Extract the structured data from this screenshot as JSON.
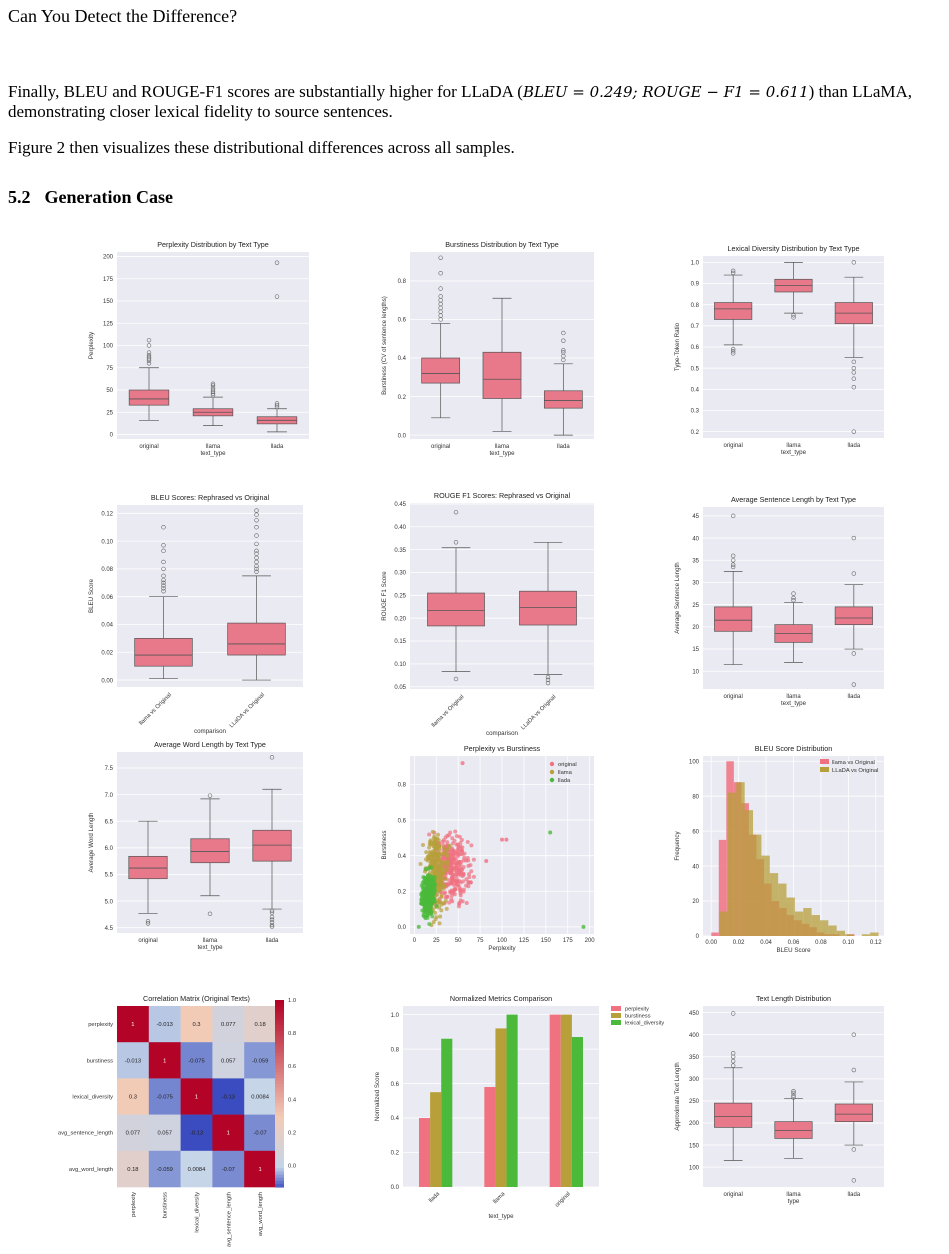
{
  "running_head": "Can You Detect the Difference?",
  "paragraph1": {
    "pre": "Finally, BLEU and ROUGE-F1 scores are substantially higher for LLaDA (",
    "math": "BLEU = 0.249; ROUGE − F1 = 0.611",
    "post": ") than LLaMA, demonstrating closer lexical fidelity to source sentences."
  },
  "paragraph2": "Figure 2 then visualizes these distributional differences across all samples.",
  "section": {
    "number": "5.2",
    "title": "Generation Case"
  },
  "colors": {
    "original": "#f07180",
    "llama": "#b79f3a",
    "llada": "#4bb93a",
    "panel_bg": "#eaeaf2",
    "box": "#e8798a"
  },
  "chart_data": [
    {
      "type": "box",
      "title": "Perplexity Distribution by Text Type",
      "xlabel": "text_type",
      "ylabel": "Perplexity",
      "categories": [
        "original",
        "llama",
        "llada"
      ],
      "ylim": [
        -5,
        205
      ],
      "yticks": [
        0,
        25,
        50,
        75,
        100,
        125,
        150,
        175,
        200
      ],
      "boxes": [
        {
          "whislo": 16,
          "q1": 33,
          "med": 40,
          "q3": 50,
          "whishi": 75,
          "fliers": [
            80,
            83,
            85,
            87,
            89,
            92,
            100,
            106
          ]
        },
        {
          "whislo": 10,
          "q1": 21,
          "med": 25,
          "q3": 29,
          "whishi": 42,
          "fliers": [
            44,
            46,
            48,
            50,
            52,
            55,
            57
          ]
        },
        {
          "whislo": 3,
          "q1": 12,
          "med": 16,
          "q3": 20,
          "whishi": 29,
          "fliers": [
            31,
            33,
            35,
            155,
            193
          ]
        }
      ]
    },
    {
      "type": "box",
      "title": "Burstiness Distribution by Text Type",
      "xlabel": "text_type",
      "ylabel": "Burstiness (CV of sentence lengths)",
      "categories": [
        "original",
        "llama",
        "llada"
      ],
      "ylim": [
        -0.02,
        0.95
      ],
      "yticks": [
        0.0,
        0.2,
        0.4,
        0.6,
        0.8
      ],
      "boxes": [
        {
          "whislo": 0.09,
          "q1": 0.27,
          "med": 0.32,
          "q3": 0.4,
          "whishi": 0.58,
          "fliers": [
            0.6,
            0.62,
            0.64,
            0.66,
            0.68,
            0.7,
            0.72,
            0.76,
            0.84,
            0.92
          ]
        },
        {
          "whislo": 0.02,
          "q1": 0.19,
          "med": 0.29,
          "q3": 0.43,
          "whishi": 0.71,
          "fliers": []
        },
        {
          "whislo": 0.0,
          "q1": 0.14,
          "med": 0.18,
          "q3": 0.23,
          "whishi": 0.37,
          "fliers": [
            0.39,
            0.41,
            0.43,
            0.44,
            0.49,
            0.53
          ]
        }
      ]
    },
    {
      "type": "box",
      "title": "Lexical Diversity Distribution by Text Type",
      "xlabel": "text_type",
      "ylabel": "Type-Token Ratio",
      "categories": [
        "original",
        "llama",
        "llada"
      ],
      "ylim": [
        0.17,
        1.03
      ],
      "yticks": [
        0.2,
        0.3,
        0.4,
        0.5,
        0.6,
        0.7,
        0.8,
        0.9,
        1.0
      ],
      "boxes": [
        {
          "whislo": 0.61,
          "q1": 0.73,
          "med": 0.78,
          "q3": 0.81,
          "whishi": 0.94,
          "fliers": [
            0.95,
            0.96,
            0.57,
            0.58,
            0.59
          ]
        },
        {
          "whislo": 0.76,
          "q1": 0.86,
          "med": 0.89,
          "q3": 0.92,
          "whishi": 1.0,
          "fliers": [
            0.74,
            0.75
          ]
        },
        {
          "whislo": 0.55,
          "q1": 0.71,
          "med": 0.76,
          "q3": 0.81,
          "whishi": 0.93,
          "fliers": [
            0.53,
            0.5,
            0.48,
            0.45,
            0.41,
            0.2,
            1.0
          ]
        }
      ]
    },
    {
      "type": "box",
      "title": "BLEU Scores: Rephrased vs Original",
      "xlabel": "comparison",
      "ylabel": "BLEU Score",
      "categories": [
        "llama vs Original",
        "LLaDA vs Original"
      ],
      "ylim": [
        -0.005,
        0.126
      ],
      "yticks": [
        0.0,
        0.02,
        0.04,
        0.06,
        0.08,
        0.1,
        0.12
      ],
      "boxes": [
        {
          "whislo": 0.001,
          "q1": 0.01,
          "med": 0.018,
          "q3": 0.03,
          "whishi": 0.06,
          "fliers": [
            0.064,
            0.066,
            0.068,
            0.07,
            0.072,
            0.075,
            0.08,
            0.085,
            0.093,
            0.097,
            0.11
          ]
        },
        {
          "whislo": 0.0,
          "q1": 0.018,
          "med": 0.026,
          "q3": 0.041,
          "whishi": 0.075,
          "fliers": [
            0.078,
            0.08,
            0.082,
            0.085,
            0.088,
            0.091,
            0.093,
            0.098,
            0.104,
            0.11,
            0.115,
            0.119,
            0.122
          ]
        }
      ]
    },
    {
      "type": "box",
      "title": "ROUGE F1 Scores: Rephrased vs Original",
      "xlabel": "comparison",
      "ylabel": "ROUGE F1 Score",
      "categories": [
        "llama vs Original",
        "LLaDA vs Original"
      ],
      "ylim": [
        0.045,
        0.452
      ],
      "yticks": [
        0.05,
        0.1,
        0.15,
        0.2,
        0.25,
        0.3,
        0.35,
        0.4,
        0.45
      ],
      "boxes": [
        {
          "whislo": 0.083,
          "q1": 0.183,
          "med": 0.217,
          "q3": 0.255,
          "whishi": 0.354,
          "fliers": [
            0.067,
            0.366,
            0.432
          ]
        },
        {
          "whislo": 0.077,
          "q1": 0.185,
          "med": 0.223,
          "q3": 0.259,
          "whishi": 0.366,
          "fliers": [
            0.058,
            0.065,
            0.071
          ]
        }
      ]
    },
    {
      "type": "box",
      "title": "Average Sentence Length by Text Type",
      "xlabel": "text_type",
      "ylabel": "Average Sentence Length",
      "categories": [
        "original",
        "llama",
        "llada"
      ],
      "ylim": [
        6,
        47
      ],
      "yticks": [
        10,
        15,
        20,
        25,
        30,
        35,
        40,
        45
      ],
      "boxes": [
        {
          "whislo": 11.5,
          "q1": 19,
          "med": 21.5,
          "q3": 24.5,
          "whishi": 32.5,
          "fliers": [
            33.5,
            34,
            35,
            36,
            45
          ]
        },
        {
          "whislo": 12,
          "q1": 16.5,
          "med": 18.5,
          "q3": 20.5,
          "whishi": 25.5,
          "fliers": [
            26,
            26.5,
            27.5
          ]
        },
        {
          "whislo": 15,
          "q1": 20.5,
          "med": 22,
          "q3": 24.5,
          "whishi": 29.5,
          "fliers": [
            14,
            7,
            32,
            40
          ]
        }
      ]
    },
    {
      "type": "box",
      "title": "Average Word Length by Text Type",
      "xlabel": "text_type",
      "ylabel": "Average Word Length",
      "categories": [
        "original",
        "llama",
        "llada"
      ],
      "ylim": [
        4.4,
        7.8
      ],
      "yticks": [
        4.5,
        5.0,
        5.5,
        6.0,
        6.5,
        7.0,
        7.5
      ],
      "boxes": [
        {
          "whislo": 4.77,
          "q1": 5.42,
          "med": 5.62,
          "q3": 5.84,
          "whishi": 6.5,
          "fliers": [
            4.58,
            4.62
          ]
        },
        {
          "whislo": 5.1,
          "q1": 5.72,
          "med": 5.93,
          "q3": 6.17,
          "whishi": 6.92,
          "fliers": [
            4.76,
            6.98
          ]
        },
        {
          "whislo": 4.85,
          "q1": 5.75,
          "med": 6.05,
          "q3": 6.33,
          "whishi": 7.1,
          "fliers": [
            4.52,
            4.55,
            4.6,
            4.65,
            4.7,
            4.78,
            4.82,
            7.7
          ]
        }
      ]
    },
    {
      "type": "scatter",
      "title": "Perplexity vs Burstiness",
      "xlabel": "Perplexity",
      "ylabel": "Burstiness",
      "xlim": [
        -5,
        205
      ],
      "ylim": [
        -0.04,
        0.96
      ],
      "xticks": [
        0,
        25,
        50,
        75,
        100,
        125,
        150,
        175,
        200
      ],
      "yticks": [
        0.0,
        0.2,
        0.4,
        0.6,
        0.8
      ],
      "legend_position": "top-right",
      "series": [
        {
          "name": "original",
          "center": [
            42,
            0.33
          ],
          "spread": [
            15,
            0.13
          ],
          "count": 300,
          "outliers": [
            [
              55,
              0.92
            ],
            [
              100,
              0.49
            ],
            [
              105,
              0.49
            ],
            [
              82,
              0.37
            ]
          ]
        },
        {
          "name": "llama",
          "center": [
            25,
            0.3
          ],
          "spread": [
            9,
            0.16
          ],
          "count": 280,
          "outliers": []
        },
        {
          "name": "llada",
          "center": [
            16,
            0.18
          ],
          "spread": [
            5,
            0.09
          ],
          "count": 300,
          "outliers": [
            [
              5,
              0.0
            ],
            [
              155,
              0.53
            ],
            [
              193,
              0.0
            ]
          ]
        }
      ]
    },
    {
      "type": "histogram",
      "title": "BLEU Score Distribution",
      "xlabel": "BLEU Score",
      "ylabel": "Frequency",
      "xlim": [
        -0.006,
        0.126
      ],
      "ylim": [
        0,
        103
      ],
      "xticks": [
        0.0,
        0.02,
        0.04,
        0.06,
        0.08,
        0.1,
        0.12
      ],
      "yticks": [
        0,
        20,
        40,
        60,
        80,
        100
      ],
      "legend_position": "top-right",
      "series": [
        {
          "name": "llama vs Original",
          "bin_start": 0.0,
          "bin_width": 0.0055,
          "counts": [
            2,
            55,
            100,
            88,
            76,
            58,
            44,
            30,
            20,
            16,
            12,
            9,
            7,
            5,
            2,
            1,
            1,
            0,
            1,
            0
          ]
        },
        {
          "name": "LLaDA vs Original",
          "bin_start": 0.0,
          "bin_width": 0.0061,
          "counts": [
            0,
            14,
            82,
            88,
            72,
            58,
            46,
            36,
            30,
            22,
            14,
            16,
            12,
            9,
            6,
            3,
            1,
            0,
            1,
            2
          ]
        }
      ]
    },
    {
      "type": "heatmap",
      "title": "Correlation Matrix (Original Texts)",
      "labels": [
        "perplexity",
        "burstiness",
        "lexical_diversity",
        "avg_sentence_length",
        "avg_word_length"
      ],
      "values": [
        [
          1,
          -0.013,
          0.3,
          0.077,
          0.18
        ],
        [
          -0.013,
          1,
          -0.075,
          0.057,
          -0.059
        ],
        [
          0.3,
          -0.075,
          1,
          -0.13,
          0.0084
        ],
        [
          0.077,
          0.057,
          -0.13,
          1,
          -0.07
        ],
        [
          0.18,
          -0.059,
          0.0084,
          -0.07,
          1
        ]
      ],
      "value_labels": [
        [
          "1",
          "-0.013",
          "0.3",
          "0.077",
          "0.18"
        ],
        [
          "-0.013",
          "1",
          "-0.075",
          "0.057",
          "-0.059"
        ],
        [
          "0.3",
          "-0.075",
          "1",
          "-0.13",
          "0.0084"
        ],
        [
          "0.077",
          "0.057",
          "-0.13",
          "1",
          "-0.07"
        ],
        [
          "0.18",
          "-0.059",
          "0.0084",
          "-0.07",
          "1"
        ]
      ],
      "colorbar_ticks": [
        0.0,
        0.2,
        0.4,
        0.6,
        0.8,
        1.0
      ],
      "colorbar_range": [
        -0.13,
        1.0
      ]
    },
    {
      "type": "bar",
      "title": "Normalized Metrics Comparison",
      "xlabel": "text_type",
      "ylabel": "Normalized Score",
      "categories": [
        "llada",
        "llama",
        "original"
      ],
      "ylim": [
        0,
        1.05
      ],
      "yticks": [
        0.0,
        0.2,
        0.4,
        0.6,
        0.8,
        1.0
      ],
      "legend_position": "outside-right",
      "series": [
        {
          "name": "perplexity",
          "values": [
            0.4,
            0.58,
            1.0
          ]
        },
        {
          "name": "burstiness",
          "values": [
            0.55,
            0.92,
            1.0
          ]
        },
        {
          "name": "lexical_diversity",
          "values": [
            0.86,
            1.0,
            0.87
          ]
        }
      ]
    },
    {
      "type": "box",
      "title": "Text Length Distribution",
      "xlabel": "type",
      "ylabel": "Approximate Text Length",
      "categories": [
        "original",
        "llama",
        "llada"
      ],
      "ylim": [
        55,
        465
      ],
      "yticks": [
        100,
        150,
        200,
        250,
        300,
        350,
        400,
        450
      ],
      "boxes": [
        {
          "whislo": 115,
          "q1": 190,
          "med": 215,
          "q3": 245,
          "whishi": 325,
          "fliers": [
            330,
            340,
            350,
            358,
            448
          ]
        },
        {
          "whislo": 120,
          "q1": 165,
          "med": 183,
          "q3": 203,
          "whishi": 255,
          "fliers": [
            258,
            262,
            268,
            272
          ]
        },
        {
          "whislo": 150,
          "q1": 203,
          "med": 220,
          "q3": 243,
          "whishi": 293,
          "fliers": [
            140,
            70,
            320,
            400
          ]
        }
      ]
    }
  ]
}
